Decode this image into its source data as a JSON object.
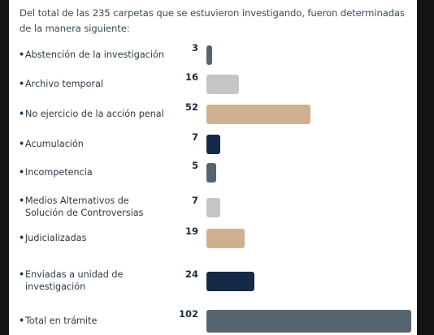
{
  "intro_text": "Del total de las 235 carpetas que se estuvieron investigando, fueron determinadas de la manera siguiente:",
  "chart_data": {
    "type": "bar",
    "orientation": "horizontal",
    "categories": [
      "Abstención de la investigación",
      "Archivo temporal",
      "No ejercicio de la acción penal",
      "Acumulación",
      "Incompetencia",
      "Medios Alternativos de Solución de Controversias",
      "Judicializadas",
      "Enviadas a unidad de investigación",
      "Total en trámite"
    ],
    "category_lines": [
      [
        "Abstención de la investigación"
      ],
      [
        "Archivo temporal"
      ],
      [
        "No ejercicio de la acción penal"
      ],
      [
        "Acumulación"
      ],
      [
        "Incompetencia"
      ],
      [
        "Medios Alternativos de",
        "Solución de Controversias"
      ],
      [
        "Judicializadas"
      ],
      [
        "Enviadas a unidad de",
        "investigación"
      ],
      [
        "Total en trámite"
      ]
    ],
    "values": [
      3,
      16,
      52,
      7,
      5,
      7,
      19,
      24,
      102
    ],
    "value_labels": [
      "3",
      "16",
      "52",
      "7",
      "5",
      "7",
      "19",
      "24",
      "102"
    ],
    "colors": [
      "#56646f",
      "#c4c5c7",
      "#cfb08e",
      "#142a47",
      "#56646f",
      "#c4c5c7",
      "#cfb08e",
      "#142a47",
      "#56646f"
    ],
    "xlim": [
      0,
      102
    ],
    "grid": false,
    "legend": "none",
    "title": "",
    "xlabel": "",
    "ylabel": ""
  }
}
